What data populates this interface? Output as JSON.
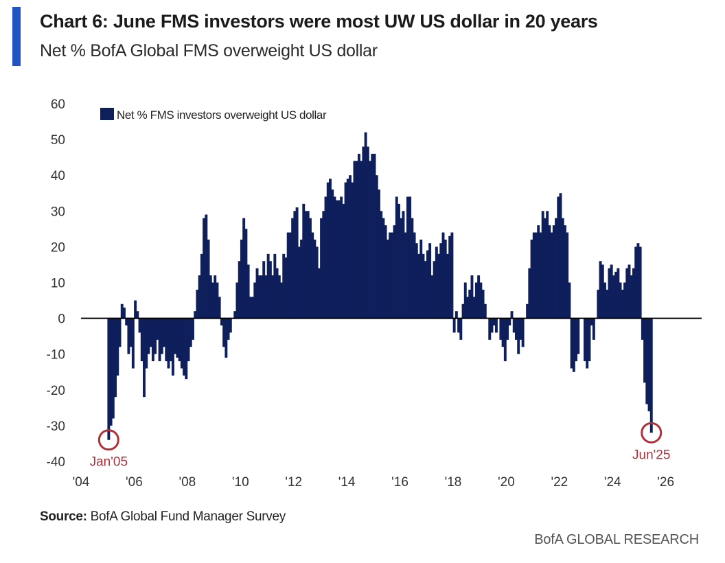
{
  "header": {
    "title": "Chart 6: June FMS investors were most UW US dollar in 20 years",
    "subtitle": "Net % BofA Global FMS overweight US dollar"
  },
  "footer": {
    "source_label": "Source:",
    "source_text": "BofA Global Fund Manager Survey",
    "brand": "BofA GLOBAL RESEARCH"
  },
  "colors": {
    "accent": "#2255c4",
    "bar": "#0f1f5c",
    "annotation": "#b0303a",
    "axis_text": "#333333"
  },
  "chart_data": {
    "type": "bar",
    "title": "Chart 6: June FMS investors were most UW US dollar in 20 years",
    "subtitle": "Net % BofA Global FMS overweight US dollar",
    "xlabel": "",
    "ylabel": "",
    "ylim": [
      -40,
      60
    ],
    "xlim": [
      2004,
      2027
    ],
    "grid": false,
    "legend": {
      "position": "top-left",
      "entries": [
        "Net % FMS investors overweight US dollar"
      ]
    },
    "y_ticks": [
      60,
      50,
      40,
      30,
      20,
      10,
      0,
      -10,
      -20,
      -30,
      -40
    ],
    "x_ticks": [
      {
        "value": 2004,
        "label": "'04"
      },
      {
        "value": 2006,
        "label": "'06"
      },
      {
        "value": 2008,
        "label": "'08"
      },
      {
        "value": 2010,
        "label": "'10"
      },
      {
        "value": 2012,
        "label": "'12"
      },
      {
        "value": 2014,
        "label": "'14"
      },
      {
        "value": 2016,
        "label": "'16"
      },
      {
        "value": 2018,
        "label": "'18"
      },
      {
        "value": 2020,
        "label": "'20"
      },
      {
        "value": 2022,
        "label": "'22"
      },
      {
        "value": 2024,
        "label": "'24"
      },
      {
        "value": 2026,
        "label": "'26"
      }
    ],
    "start": {
      "year": 2005,
      "month": 1
    },
    "series": [
      {
        "name": "Net % FMS investors overweight US dollar",
        "frequency": "monthly",
        "values": [
          -34,
          -30,
          -28,
          -22,
          -16,
          -8,
          4,
          3,
          -2,
          -10,
          -8,
          -14,
          5,
          2,
          -4,
          -12,
          -22,
          -14,
          -10,
          -8,
          -12,
          -10,
          -6,
          -12,
          -10,
          -8,
          -12,
          -14,
          -12,
          -16,
          -10,
          -11,
          -12,
          -14,
          -16,
          -17,
          -12,
          -8,
          -6,
          2,
          8,
          12,
          18,
          28,
          29,
          22,
          12,
          10,
          12,
          10,
          6,
          -2,
          -8,
          -11,
          -6,
          -4,
          0,
          2,
          10,
          16,
          22,
          28,
          25,
          15,
          6,
          6,
          10,
          14,
          12,
          12,
          16,
          12,
          18,
          16,
          12,
          18,
          14,
          12,
          10,
          18,
          17,
          24,
          24,
          28,
          30,
          31,
          20,
          22,
          32,
          30,
          30,
          28,
          24,
          22,
          20,
          14,
          28,
          30,
          34,
          38,
          39,
          36,
          34,
          33,
          33,
          34,
          32,
          38,
          39,
          40,
          38,
          44,
          44,
          46,
          44,
          48,
          52,
          48,
          44,
          46,
          46,
          40,
          36,
          30,
          28,
          26,
          22,
          24,
          24,
          26,
          34,
          32,
          28,
          30,
          24,
          34,
          34,
          28,
          24,
          21,
          18,
          22,
          18,
          16,
          19,
          21,
          12,
          16,
          20,
          18,
          21,
          24,
          22,
          18,
          23,
          24,
          -4,
          2,
          -4,
          -6,
          4,
          10,
          6,
          8,
          12,
          6,
          10,
          12,
          10,
          8,
          4,
          0,
          -6,
          -4,
          -2,
          -4,
          0,
          -6,
          -8,
          -12,
          -6,
          -2,
          2,
          -4,
          -6,
          -10,
          -6,
          -8,
          0,
          4,
          14,
          22,
          24,
          24,
          26,
          24,
          30,
          28,
          30,
          26,
          24,
          26,
          28,
          34,
          35,
          28,
          26,
          24,
          10,
          -14,
          -15,
          -12,
          -10,
          0,
          0,
          -12,
          -14,
          -12,
          -2,
          -6,
          0,
          8,
          16,
          15,
          10,
          8,
          14,
          15,
          12,
          13,
          14,
          10,
          8,
          10,
          14,
          15,
          12,
          14,
          20,
          21,
          20,
          -6,
          -18,
          -24,
          -26,
          -32
        ]
      }
    ],
    "annotations": [
      {
        "label": "Jan'05",
        "year": 2005,
        "month": 1,
        "value": -34
      },
      {
        "label": "Jun'25",
        "year": 2025,
        "month": 6,
        "value": -32
      }
    ]
  }
}
